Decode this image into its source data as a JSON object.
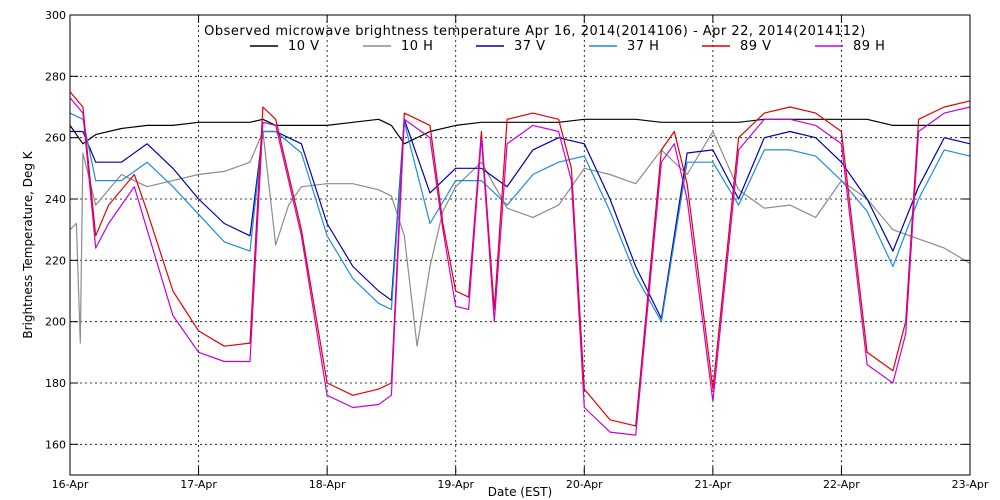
{
  "chart_data": {
    "type": "line",
    "title": "Observed microwave brightness temperature Apr 16, 2014(2014106) - Apr 22, 2014(2014112)",
    "xlabel": "Date (EST)",
    "ylabel": "Brightness Temperature, Deg K",
    "xlim": [
      0,
      7
    ],
    "ylim": [
      150,
      300
    ],
    "grid": true,
    "legend_position": "top-center",
    "x_tick_values": [
      0,
      1,
      2,
      3,
      4,
      5,
      6,
      7
    ],
    "x_tick_labels": [
      "16-Apr",
      "17-Apr",
      "18-Apr",
      "19-Apr",
      "20-Apr",
      "21-Apr",
      "22-Apr",
      "23-Apr"
    ],
    "y_ticks": [
      160,
      180,
      200,
      220,
      240,
      260,
      280,
      300
    ],
    "series": [
      {
        "name": "10 V",
        "color": "#000000",
        "x": [
          0,
          0.1,
          0.2,
          0.4,
          0.6,
          0.8,
          1.0,
          1.2,
          1.4,
          1.5,
          1.6,
          1.8,
          2.0,
          2.2,
          2.4,
          2.5,
          2.6,
          2.8,
          3.0,
          3.2,
          3.4,
          3.6,
          3.8,
          4.0,
          4.2,
          4.4,
          4.6,
          4.8,
          5.0,
          5.2,
          5.4,
          5.6,
          5.8,
          6.0,
          6.2,
          6.4,
          6.6,
          6.8,
          7.0
        ],
        "y": [
          264,
          258,
          261,
          263,
          264,
          264,
          265,
          265,
          265,
          266,
          264,
          264,
          264,
          265,
          266,
          264,
          258,
          262,
          264,
          265,
          265,
          265,
          265,
          266,
          266,
          266,
          265,
          265,
          265,
          265,
          266,
          266,
          266,
          266,
          266,
          264,
          264,
          264,
          264
        ]
      },
      {
        "name": "10 H",
        "color": "#8c8c8c",
        "x": [
          0,
          0.05,
          0.08,
          0.1,
          0.2,
          0.4,
          0.6,
          0.8,
          1.0,
          1.2,
          1.4,
          1.5,
          1.6,
          1.7,
          1.8,
          2.0,
          2.2,
          2.4,
          2.5,
          2.6,
          2.7,
          2.8,
          2.9,
          3.0,
          3.2,
          3.4,
          3.6,
          3.8,
          4.0,
          4.2,
          4.4,
          4.6,
          4.8,
          5.0,
          5.2,
          5.4,
          5.6,
          5.8,
          6.0,
          6.2,
          6.4,
          6.6,
          6.8,
          7.0
        ],
        "y": [
          230,
          232,
          193,
          255,
          238,
          248,
          244,
          246,
          248,
          249,
          252,
          262,
          225,
          238,
          244,
          245,
          245,
          243,
          241,
          228,
          192,
          218,
          236,
          244,
          252,
          237,
          234,
          238,
          250,
          248,
          245,
          256,
          248,
          262,
          243,
          237,
          238,
          234,
          246,
          240,
          230,
          227,
          224,
          219
        ]
      },
      {
        "name": "37 V",
        "color": "#0000b4",
        "x": [
          0,
          0.1,
          0.2,
          0.4,
          0.6,
          0.8,
          1.0,
          1.2,
          1.4,
          1.5,
          1.6,
          1.8,
          2.0,
          2.2,
          2.4,
          2.5,
          2.6,
          2.8,
          3.0,
          3.2,
          3.4,
          3.6,
          3.8,
          4.0,
          4.2,
          4.4,
          4.6,
          4.8,
          5.0,
          5.2,
          5.4,
          5.6,
          5.8,
          6.0,
          6.2,
          6.4,
          6.6,
          6.8,
          7.0
        ],
        "y": [
          262,
          262,
          252,
          252,
          258,
          250,
          240,
          232,
          228,
          262,
          262,
          258,
          232,
          218,
          210,
          207,
          266,
          242,
          250,
          250,
          244,
          256,
          260,
          258,
          240,
          218,
          201,
          255,
          256,
          240,
          260,
          262,
          260,
          252,
          240,
          223,
          244,
          260,
          258
        ]
      },
      {
        "name": "37 H",
        "color": "#1e8cdc",
        "x": [
          0,
          0.1,
          0.2,
          0.4,
          0.6,
          0.8,
          1.0,
          1.2,
          1.4,
          1.5,
          1.6,
          1.8,
          2.0,
          2.2,
          2.4,
          2.5,
          2.6,
          2.8,
          3.0,
          3.2,
          3.4,
          3.6,
          3.8,
          4.0,
          4.2,
          4.4,
          4.6,
          4.8,
          5.0,
          5.2,
          5.4,
          5.6,
          5.8,
          6.0,
          6.2,
          6.4,
          6.6,
          6.8,
          7.0
        ],
        "y": [
          268,
          266,
          246,
          246,
          252,
          244,
          235,
          226,
          223,
          262,
          262,
          255,
          228,
          214,
          206,
          204,
          265,
          232,
          246,
          246,
          238,
          248,
          252,
          254,
          236,
          215,
          200,
          252,
          252,
          238,
          256,
          256,
          254,
          246,
          236,
          218,
          240,
          256,
          254
        ]
      },
      {
        "name": "89 V",
        "color": "#e60000",
        "x": [
          0,
          0.1,
          0.2,
          0.3,
          0.5,
          0.6,
          0.8,
          1.0,
          1.2,
          1.4,
          1.5,
          1.6,
          1.8,
          2.0,
          2.2,
          2.4,
          2.5,
          2.6,
          2.8,
          2.9,
          3.0,
          3.1,
          3.2,
          3.3,
          3.4,
          3.6,
          3.8,
          3.9,
          4.0,
          4.2,
          4.4,
          4.6,
          4.7,
          4.8,
          5.0,
          5.2,
          5.4,
          5.6,
          5.8,
          6.0,
          6.2,
          6.4,
          6.5,
          6.6,
          6.8,
          7.0
        ],
        "y": [
          275,
          270,
          228,
          238,
          248,
          236,
          210,
          197,
          192,
          193,
          270,
          266,
          230,
          180,
          176,
          178,
          180,
          268,
          264,
          232,
          210,
          208,
          262,
          204,
          266,
          268,
          266,
          250,
          178,
          168,
          166,
          256,
          262,
          245,
          178,
          260,
          268,
          270,
          268,
          262,
          190,
          184,
          200,
          266,
          270,
          272
        ]
      },
      {
        "name": "89 H",
        "color": "#c800dc",
        "x": [
          0,
          0.1,
          0.2,
          0.3,
          0.5,
          0.6,
          0.8,
          1.0,
          1.2,
          1.4,
          1.5,
          1.6,
          1.8,
          2.0,
          2.2,
          2.4,
          2.5,
          2.6,
          2.8,
          2.9,
          3.0,
          3.1,
          3.2,
          3.3,
          3.4,
          3.6,
          3.8,
          3.9,
          4.0,
          4.2,
          4.4,
          4.6,
          4.7,
          4.8,
          5.0,
          5.2,
          5.4,
          5.6,
          5.8,
          6.0,
          6.2,
          6.4,
          6.5,
          6.6,
          6.8,
          7.0
        ],
        "y": [
          273,
          268,
          224,
          232,
          244,
          230,
          202,
          190,
          187,
          187,
          265,
          264,
          228,
          176,
          172,
          173,
          176,
          266,
          260,
          230,
          205,
          204,
          260,
          200,
          258,
          264,
          262,
          246,
          172,
          164,
          163,
          252,
          258,
          240,
          174,
          256,
          266,
          266,
          264,
          258,
          186,
          180,
          196,
          262,
          268,
          270
        ]
      }
    ]
  }
}
